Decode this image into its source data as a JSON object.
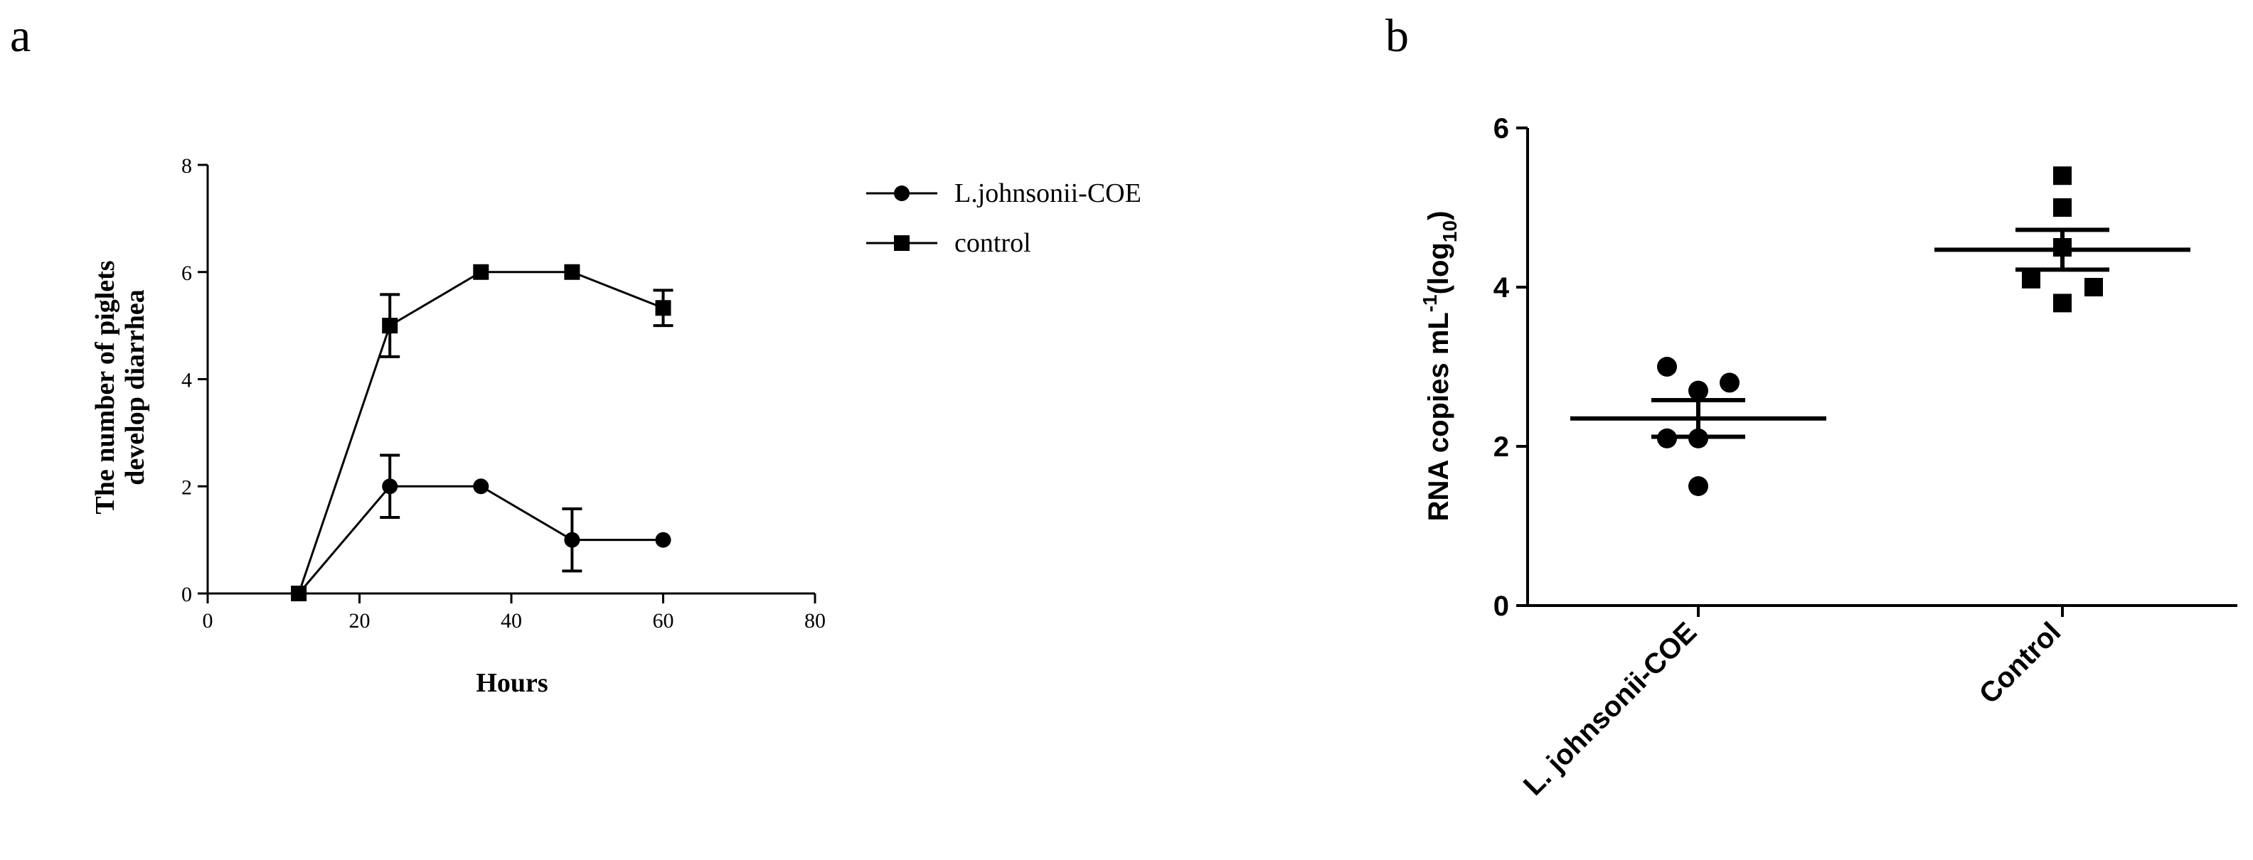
{
  "chart_data": [
    {
      "panel": "a",
      "type": "line",
      "xlabel": "Hours",
      "ylabel_lines": [
        "The number of piglets",
        "develop diarrhea"
      ],
      "xlim": [
        0,
        80
      ],
      "ylim": [
        0,
        8
      ],
      "xticks": [
        0,
        20,
        40,
        60,
        80
      ],
      "yticks": [
        0,
        2,
        4,
        6,
        8
      ],
      "grid": false,
      "legend_position": "right",
      "series": [
        {
          "name": "L.johnsonii-COE",
          "marker": "circle",
          "x": [
            12,
            24,
            36,
            48,
            60
          ],
          "y": [
            0,
            2,
            2,
            1,
            1
          ],
          "error": [
            0,
            0.58,
            0,
            0.58,
            0
          ]
        },
        {
          "name": "control",
          "marker": "square",
          "x": [
            12,
            24,
            36,
            48,
            60
          ],
          "y": [
            0,
            5,
            6,
            6,
            5.33
          ],
          "error": [
            0,
            0.58,
            0,
            0,
            0.33
          ]
        }
      ]
    },
    {
      "panel": "b",
      "type": "scatter",
      "ylabel": "RNA copies mL",
      "ylabel_sup": "-1",
      "ylabel_open": "(log",
      "ylabel_sub": "10",
      "ylabel_close": ")",
      "ylim": [
        0,
        6
      ],
      "yticks": [
        0,
        2,
        4,
        6
      ],
      "grid": false,
      "categories": [
        "L. johnsonii-COE",
        "Control"
      ],
      "groups": [
        {
          "name": "L. johnsonii-COE",
          "marker": "circle",
          "points": [
            {
              "offset": -0.5,
              "y": 3.0
            },
            {
              "offset": 0.5,
              "y": 2.8
            },
            {
              "offset": 0.0,
              "y": 2.7
            },
            {
              "offset": -0.5,
              "y": 2.1
            },
            {
              "offset": 0.0,
              "y": 2.1
            },
            {
              "offset": 0.0,
              "y": 1.5
            }
          ],
          "mean": 2.35,
          "sem": 0.23
        },
        {
          "name": "Control",
          "marker": "square",
          "points": [
            {
              "offset": 0.0,
              "y": 5.4
            },
            {
              "offset": 0.0,
              "y": 5.0
            },
            {
              "offset": 0.0,
              "y": 4.5
            },
            {
              "offset": -0.5,
              "y": 4.1
            },
            {
              "offset": 0.5,
              "y": 4.0
            },
            {
              "offset": 0.0,
              "y": 3.8
            }
          ],
          "mean": 4.47,
          "sem": 0.25
        }
      ]
    }
  ]
}
